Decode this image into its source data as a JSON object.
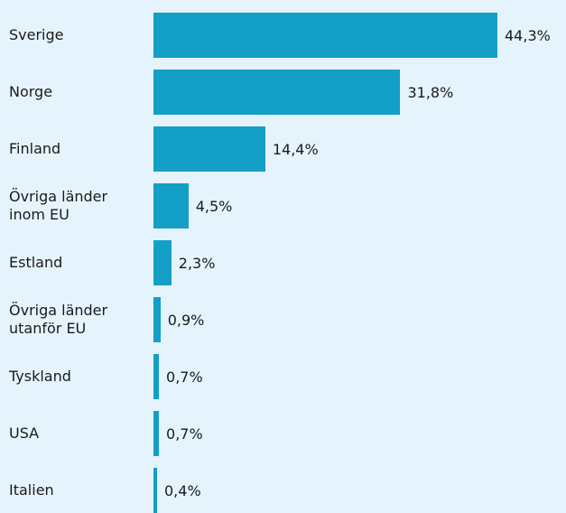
{
  "chart_data": {
    "type": "bar",
    "orientation": "horizontal",
    "categories": [
      "Sverige",
      "Norge",
      "Finland",
      "Övriga länder inom EU",
      "Estland",
      "Övriga länder utanför EU",
      "Tyskland",
      "USA",
      "Italien"
    ],
    "values": [
      44.3,
      31.8,
      14.4,
      4.5,
      2.3,
      0.9,
      0.7,
      0.7,
      0.4
    ],
    "value_labels": [
      "44,3%",
      "31,8%",
      "14,4%",
      "4,5%",
      "2,3%",
      "0,9%",
      "0,7%",
      "0,7%",
      "0,4%"
    ],
    "color": "#139fc6"
  }
}
